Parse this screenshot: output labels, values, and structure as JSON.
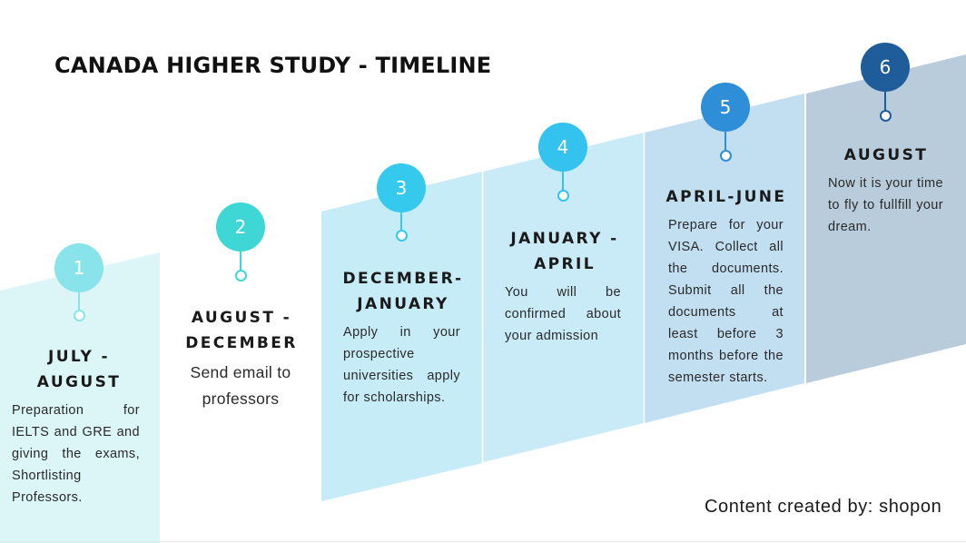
{
  "title": "CANADA HIGHER STUDY  - TIMELINE",
  "credit": "Content created by: shopon",
  "colors": {
    "band_1": "#dcf6f8",
    "band_3": "#c6ecf8",
    "band_4": "#c9ebf8",
    "band_5": "#c1dff1",
    "band_6": "#b8ccdc",
    "circle_1": "#88e4ea",
    "circle_2": "#3fd6d6",
    "circle_3": "#35c9ee",
    "circle_4": "#34c2ee",
    "circle_5": "#2f8ed8",
    "circle_6": "#1f5d9a"
  },
  "steps": [
    {
      "number": "1",
      "heading_lines": [
        "JULY -",
        "AUGUST"
      ],
      "desc": "Preparation for IELTS and GRE and giving the exams, Shortlisting Professors.",
      "circle_color": "#88e4ea",
      "stem_color": "#88e4ea"
    },
    {
      "number": "2",
      "heading_lines": [
        "AUGUST -",
        "DECEMBER"
      ],
      "desc": "Send email to professors",
      "circle_color": "#3fd6d6",
      "stem_color": "#3fd6d6"
    },
    {
      "number": "3",
      "heading_lines": [
        "DECEMBER-",
        "JANUARY"
      ],
      "desc": "Apply in your prospective universities apply for scholarships.",
      "circle_color": "#35c9ee",
      "stem_color": "#35c9ee"
    },
    {
      "number": "4",
      "heading_lines": [
        "JANUARY -",
        "APRIL"
      ],
      "desc": "You will be confirmed about your admission",
      "circle_color": "#34c2ee",
      "stem_color": "#34c2ee"
    },
    {
      "number": "5",
      "heading_lines": [
        "APRIL-JUNE"
      ],
      "desc": "Prepare for your VISA. Collect all the documents. Submit all the documents at least before 3 months before the semester starts.",
      "circle_color": "#2f8ed8",
      "stem_color": "#2f8ed8"
    },
    {
      "number": "6",
      "heading_lines": [
        "AUGUST"
      ],
      "desc": "Now it is your time to fly to fullfill your dream.",
      "circle_color": "#1f5d9a",
      "stem_color": "#1f5d9a"
    }
  ]
}
